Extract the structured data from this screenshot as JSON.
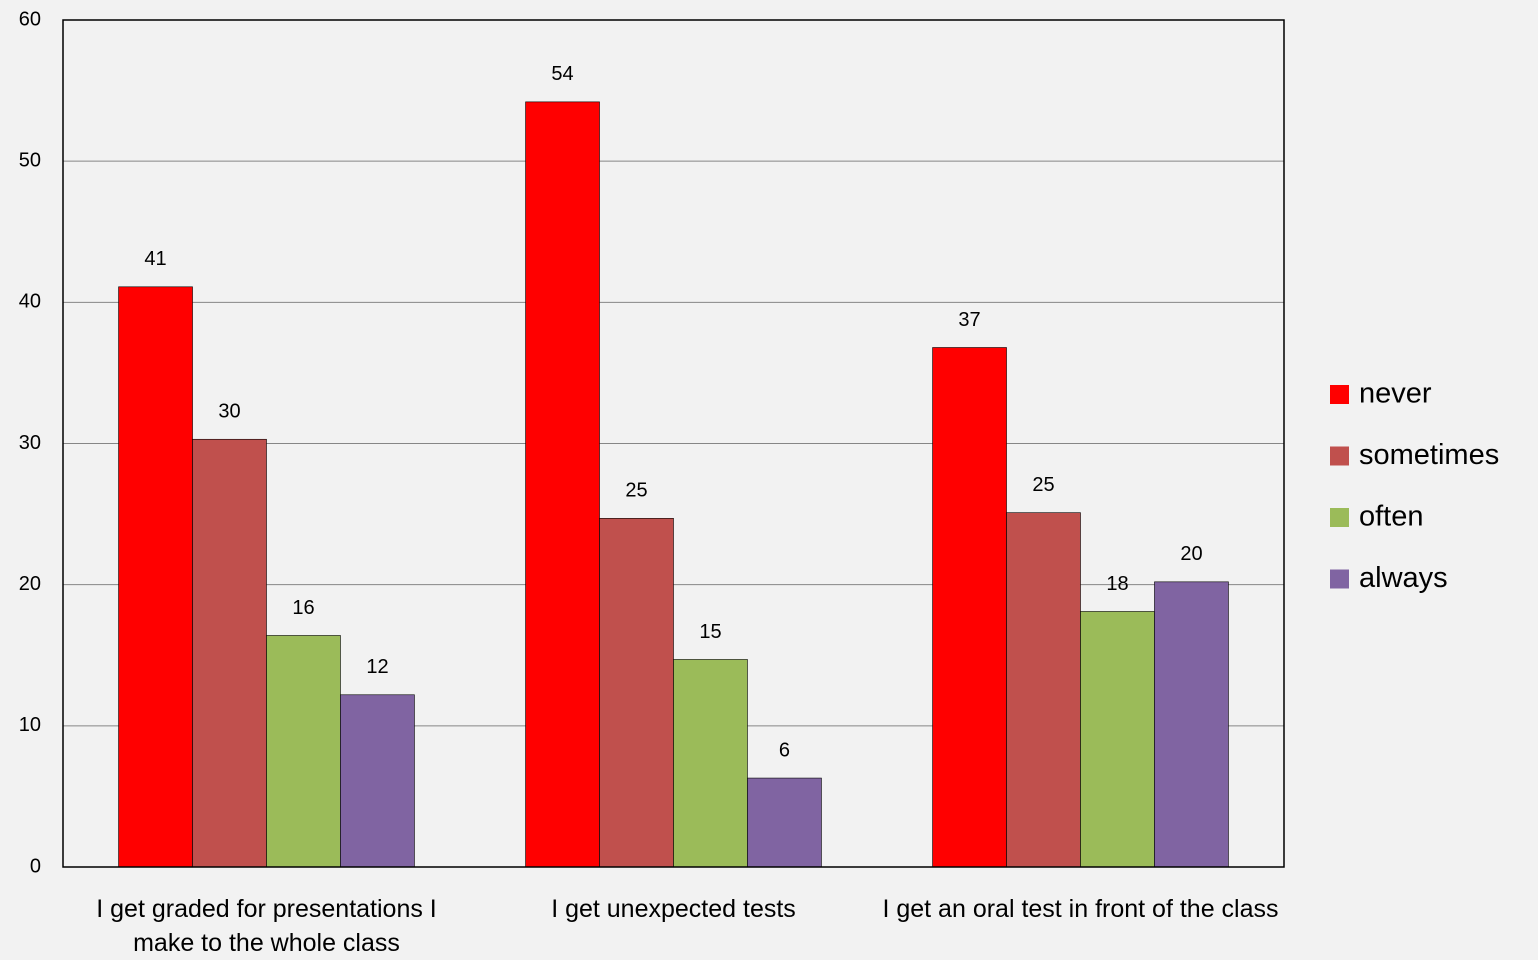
{
  "chart_data": {
    "type": "bar",
    "categories": [
      "I get graded for presentations I make to the whole class",
      "I get unexpected tests",
      "I get an oral test in front of the class"
    ],
    "series": [
      {
        "name": "never",
        "color": "#ff0000",
        "values": [
          41.1,
          54.2,
          36.8
        ],
        "value_labels": [
          "41",
          "54",
          "37"
        ]
      },
      {
        "name": "sometimes",
        "color": "#c0504d",
        "values": [
          30.3,
          24.7,
          25.1
        ],
        "value_labels": [
          "30",
          "25",
          "25"
        ]
      },
      {
        "name": "often",
        "color": "#9bbb59",
        "values": [
          16.4,
          14.7,
          18.1
        ],
        "value_labels": [
          "16",
          "15",
          "18"
        ]
      },
      {
        "name": "always",
        "color": "#8064a2",
        "values": [
          12.2,
          6.3,
          20.2
        ],
        "value_labels": [
          "12",
          "6",
          "20"
        ]
      }
    ],
    "ylim": [
      0,
      60
    ],
    "yticks": [
      0,
      10,
      20,
      30,
      40,
      50,
      60
    ],
    "grid": true,
    "legend": "right"
  }
}
